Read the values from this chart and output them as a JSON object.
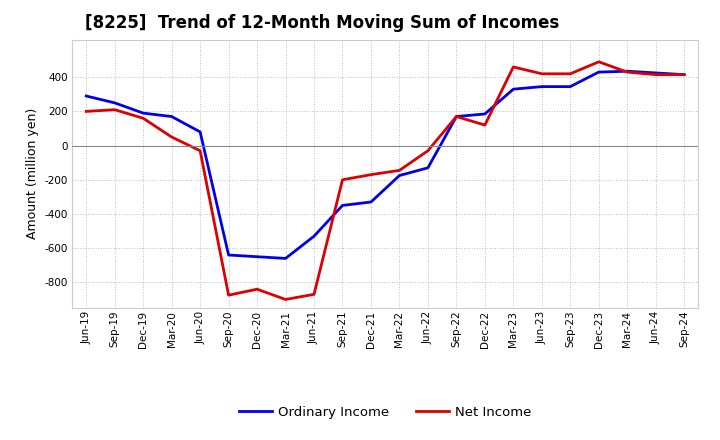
{
  "title": "[8225]  Trend of 12-Month Moving Sum of Incomes",
  "ylabel": "Amount (million yen)",
  "ylim": [
    -950,
    620
  ],
  "yticks": [
    -800,
    -600,
    -400,
    -200,
    0,
    200,
    400
  ],
  "background_color": "#ffffff",
  "plot_bg_color": "#ffffff",
  "grid_color": "#aaaaaa",
  "ordinary_income_color": "#0000ee",
  "net_income_color": "#dd0000",
  "labels": [
    "Jun-19",
    "Sep-19",
    "Dec-19",
    "Mar-20",
    "Jun-20",
    "Sep-20",
    "Dec-20",
    "Mar-21",
    "Jun-21",
    "Sep-21",
    "Dec-21",
    "Mar-22",
    "Jun-22",
    "Sep-22",
    "Dec-22",
    "Mar-23",
    "Jun-23",
    "Sep-23",
    "Dec-23",
    "Mar-24",
    "Jun-24",
    "Sep-24"
  ],
  "ordinary_income": [
    290,
    250,
    190,
    170,
    80,
    -640,
    -650,
    -660,
    -530,
    -350,
    -330,
    -175,
    -130,
    170,
    185,
    330,
    345,
    345,
    430,
    435,
    425,
    415
  ],
  "net_income": [
    200,
    210,
    160,
    50,
    -30,
    -875,
    -840,
    -900,
    -870,
    -200,
    -170,
    -145,
    -30,
    170,
    120,
    460,
    420,
    420,
    490,
    430,
    415,
    415
  ],
  "legend_labels": [
    "Ordinary Income",
    "Net Income"
  ],
  "title_fontsize": 12,
  "ylabel_fontsize": 9,
  "tick_fontsize": 7.5,
  "legend_fontsize": 9.5,
  "linewidth": 2.0
}
